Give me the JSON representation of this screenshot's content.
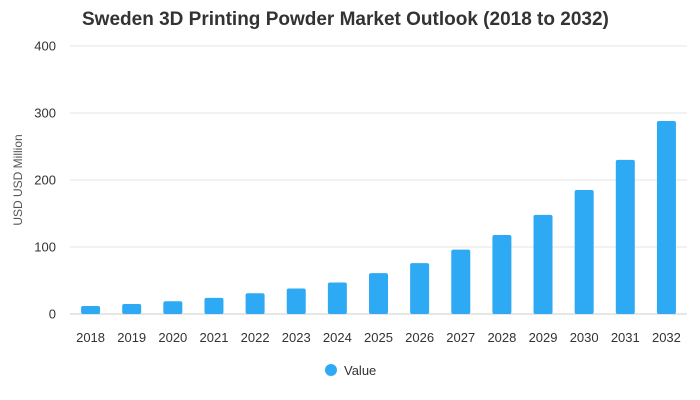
{
  "chart_data": {
    "type": "bar",
    "title": "Sweden 3D Printing Powder Market Outlook (2018 to 2032)",
    "xlabel": "",
    "ylabel": "USD USD Million",
    "ylim": [
      0,
      400
    ],
    "yticks": [
      0,
      100,
      200,
      300,
      400
    ],
    "categories": [
      "2018",
      "2019",
      "2020",
      "2021",
      "2022",
      "2023",
      "2024",
      "2025",
      "2026",
      "2027",
      "2028",
      "2029",
      "2030",
      "2031",
      "2032"
    ],
    "series": [
      {
        "name": "Value",
        "color": "#2eaaf4",
        "values": [
          12,
          15,
          19,
          24,
          31,
          38,
          47,
          61,
          76,
          96,
          118,
          148,
          185,
          230,
          288
        ]
      }
    ],
    "grid": true,
    "legend_position": "bottom"
  }
}
